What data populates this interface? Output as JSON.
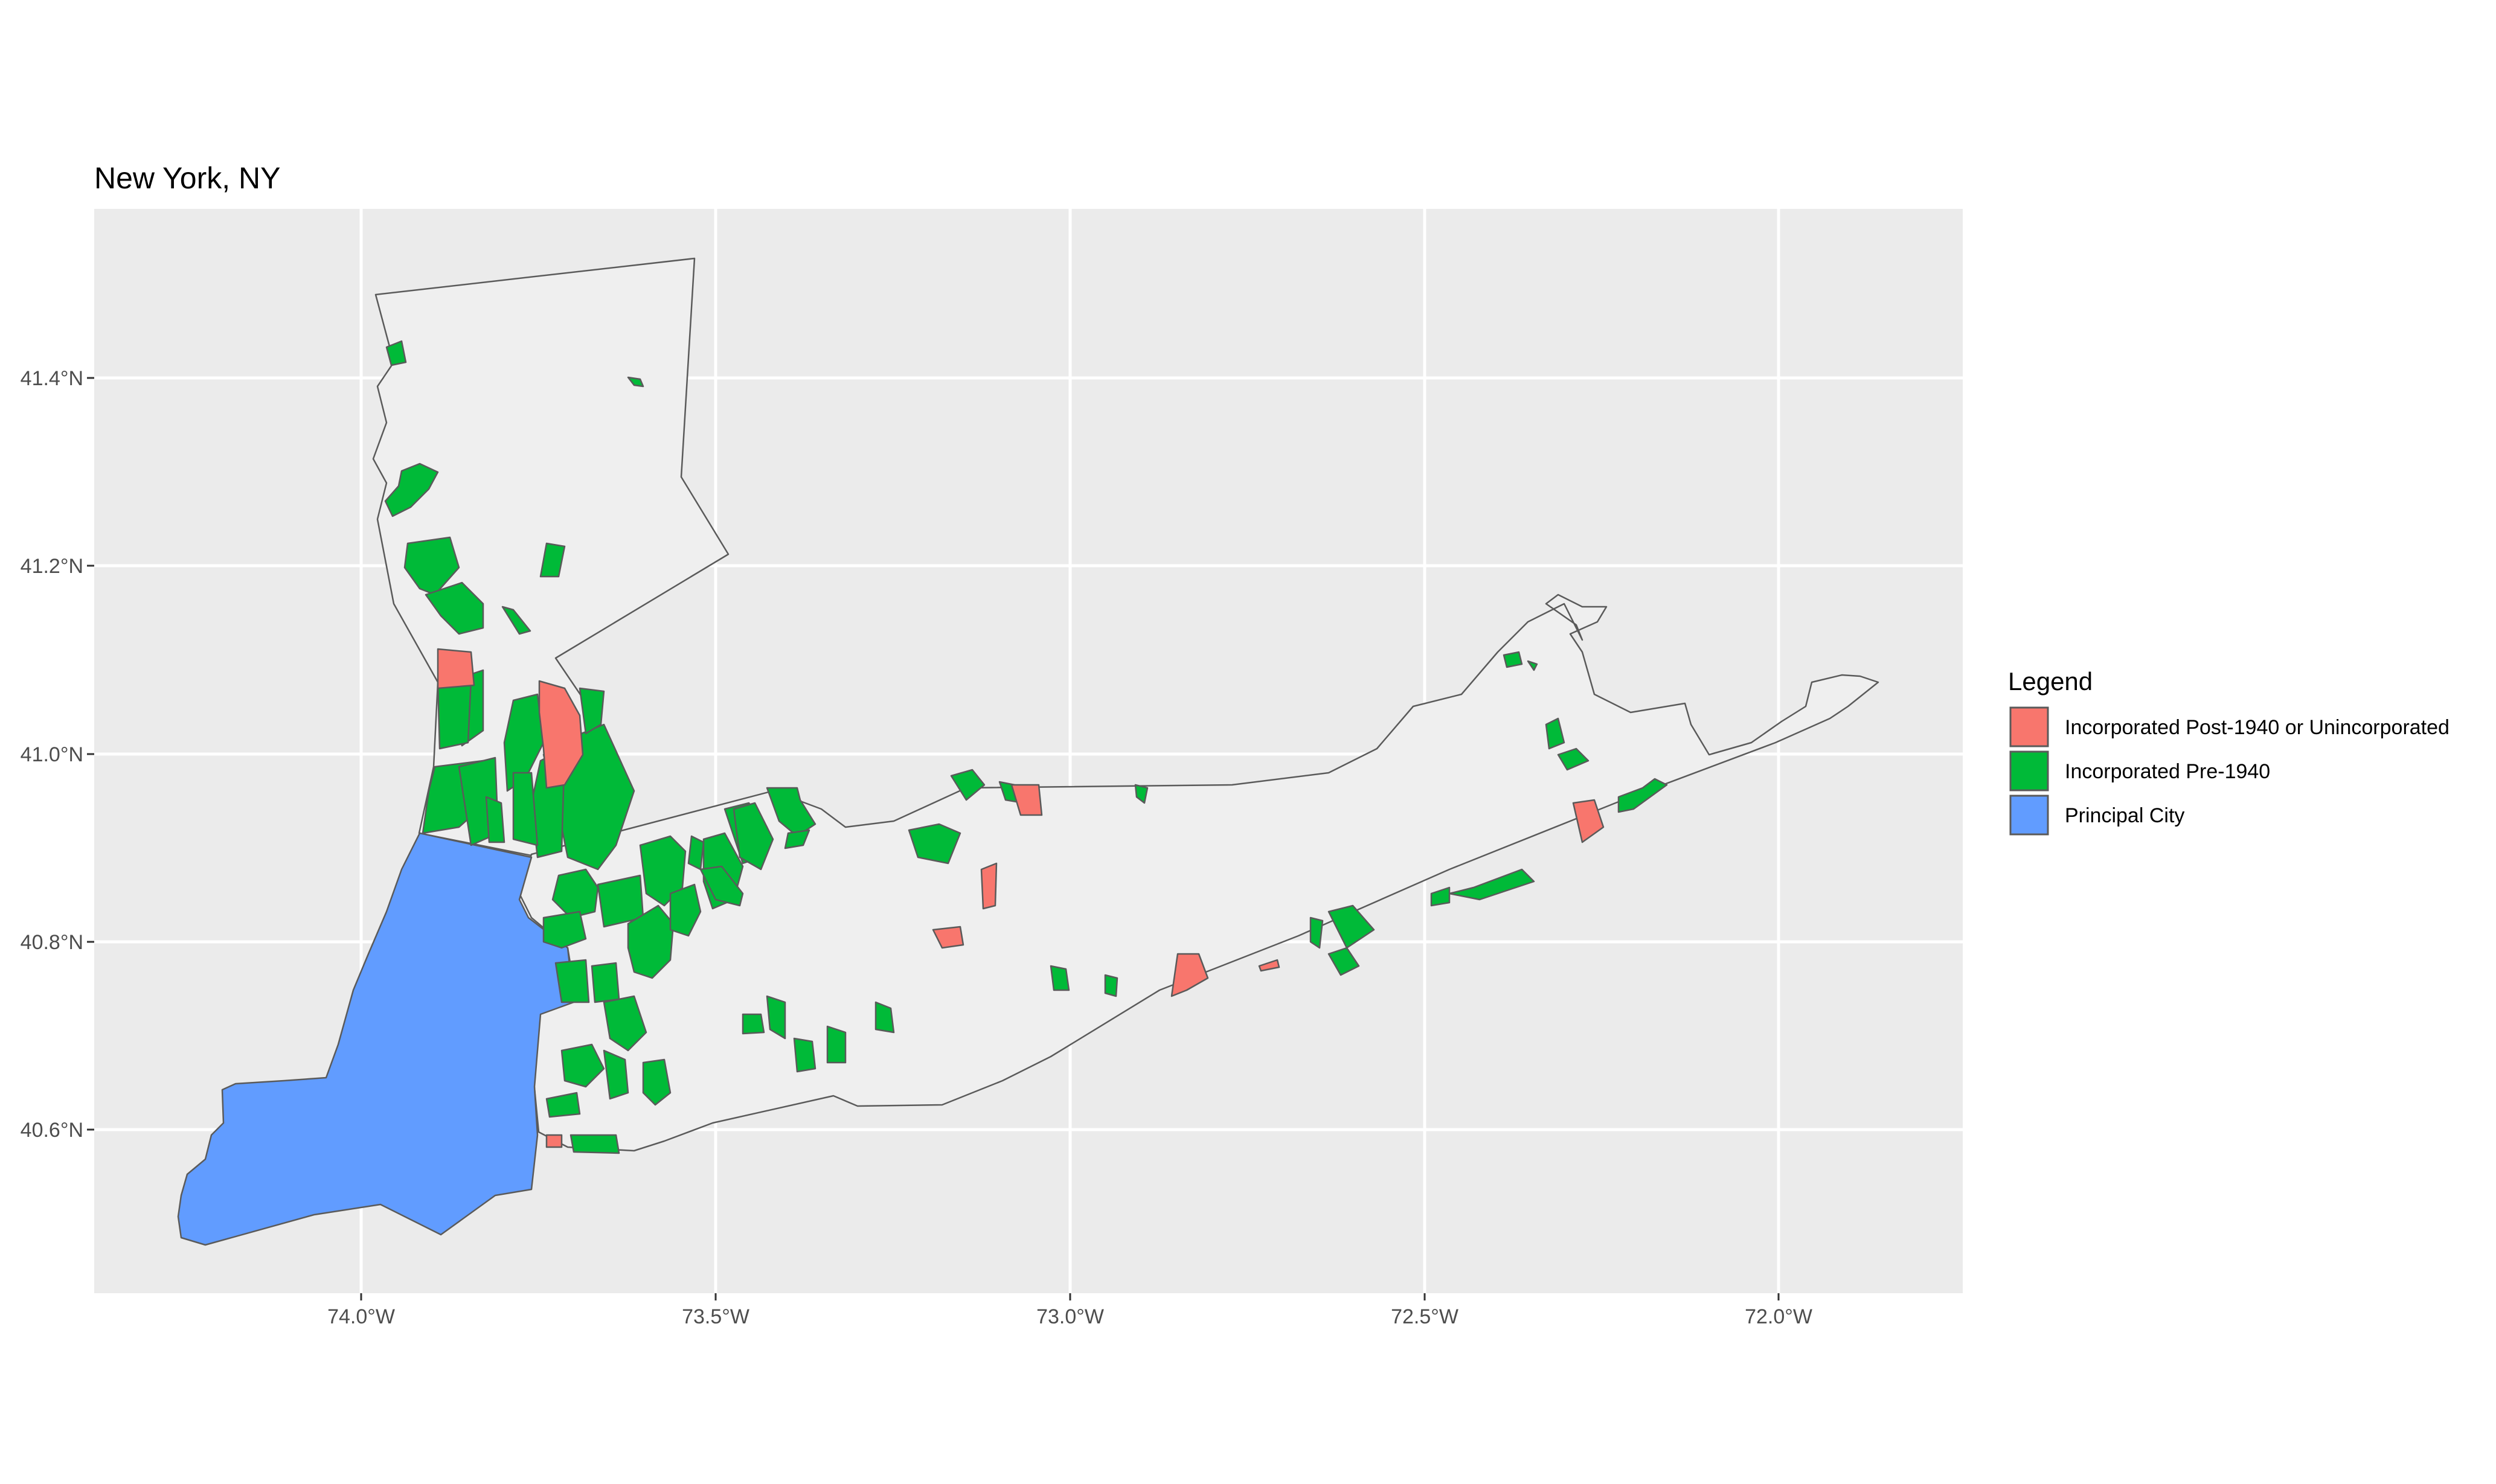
{
  "title": "New York, NY",
  "colors": {
    "panel_background": "#EBEBEB",
    "gridline": "#FFFFFF",
    "outline_fill": "#EFEFEF",
    "outline_stroke": "#5A5A5A"
  },
  "axes": {
    "x_ticks": [
      "74.0°W",
      "73.5°W",
      "73.0°W",
      "72.5°W",
      "72.0°W"
    ],
    "y_ticks": [
      "40.6°N",
      "40.8°N",
      "41.0°N",
      "41.2°N",
      "41.4°N"
    ]
  },
  "legend": {
    "title": "Legend",
    "items": [
      {
        "label": "Incorporated Post-1940 or Unincorporated",
        "color": "#F8766D"
      },
      {
        "label": "Incorporated Pre-1940",
        "color": "#00BA38"
      },
      {
        "label": "Principal City",
        "color": "#619CFF"
      }
    ]
  }
}
